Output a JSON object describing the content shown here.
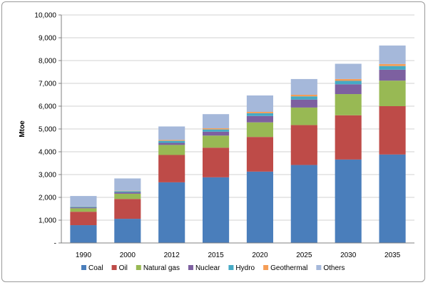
{
  "chart_data": {
    "type": "bar",
    "stacked": true,
    "title": "",
    "xlabel": "",
    "ylabel": "Mtoe",
    "ylim": [
      0,
      10000
    ],
    "yticks": [
      0,
      1000,
      2000,
      3000,
      4000,
      5000,
      6000,
      7000,
      8000,
      9000,
      10000
    ],
    "ytick_labels": [
      "-",
      "1,000",
      "2,000",
      "3,000",
      "4,000",
      "5,000",
      "6,000",
      "7,000",
      "8,000",
      "9,000",
      "10,000"
    ],
    "categories": [
      "1990",
      "2000",
      "2012",
      "2015",
      "2020",
      "2025",
      "2030",
      "2035"
    ],
    "grid": true,
    "legend": "bottom",
    "series": [
      {
        "name": "Coal",
        "color": "#4a7ebb",
        "values": [
          780,
          1060,
          2660,
          2880,
          3130,
          3420,
          3660,
          3880
        ]
      },
      {
        "name": "Oil",
        "color": "#be4b48",
        "values": [
          590,
          870,
          1200,
          1300,
          1520,
          1750,
          1940,
          2120
        ]
      },
      {
        "name": "Natural gas",
        "color": "#98b954",
        "values": [
          150,
          230,
          440,
          530,
          640,
          770,
          930,
          1120
        ]
      },
      {
        "name": "Nuclear",
        "color": "#7d60a0",
        "values": [
          40,
          60,
          90,
          170,
          280,
          350,
          430,
          480
        ]
      },
      {
        "name": "Hydro",
        "color": "#46aac5",
        "values": [
          30,
          50,
          90,
          100,
          120,
          140,
          150,
          160
        ]
      },
      {
        "name": "Geothermal",
        "color": "#f59d56",
        "values": [
          10,
          20,
          40,
          50,
          60,
          70,
          80,
          90
        ]
      },
      {
        "name": "Others",
        "color": "#a5b8da",
        "values": [
          460,
          540,
          590,
          620,
          720,
          690,
          670,
          810
        ]
      }
    ]
  }
}
